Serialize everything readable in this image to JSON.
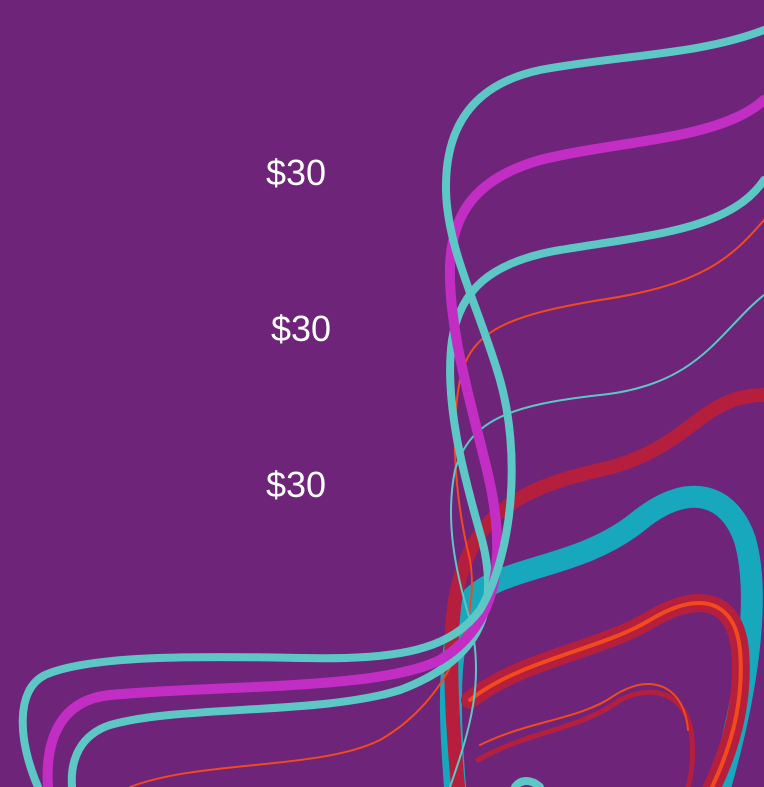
{
  "prices": [
    {
      "text": "$30"
    },
    {
      "text": "$30"
    },
    {
      "text": "$30"
    }
  ],
  "colors": {
    "background": "#6e2479",
    "teal": "#5cc7c4",
    "magenta": "#c22ec4",
    "cyan": "#17a8bd",
    "red": "#b51f3d",
    "orange": "#f04a1e",
    "text": "#ffffff"
  }
}
